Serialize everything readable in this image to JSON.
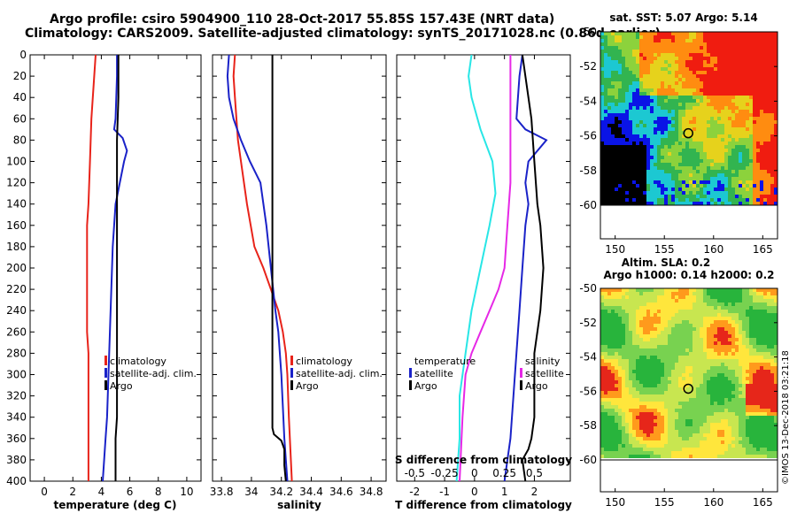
{
  "title_line1": "Argo profile: csiro 5904900_110 28-Oct-2017 55.85S 157.43E (NRT data)",
  "title_line2": "Climatology: CARS2009. Satellite-adjusted climatology: synTS_20171028.nc (0.86d earlier)",
  "copyright": "©IMOS 13-Dec-2018 03:21:18",
  "colors": {
    "climatology": "#e8231a",
    "satellite": "#1a22c8",
    "argo": "#000000",
    "cyan": "#28e6e6",
    "magenta": "#e628e6"
  },
  "chart_data": [
    {
      "type": "line",
      "name": "temperature",
      "xlabel": "temperature (deg C)",
      "xlim": [
        -1,
        11
      ],
      "xticks": [
        "0",
        "2",
        "4",
        "6",
        "8",
        "10"
      ],
      "ylim": [
        0,
        400
      ],
      "yticks": [
        "0",
        "20",
        "40",
        "60",
        "80",
        "100",
        "120",
        "140",
        "160",
        "180",
        "200",
        "220",
        "240",
        "260",
        "280",
        "300",
        "320",
        "340",
        "360",
        "380",
        "400"
      ],
      "legend": [
        "climatology",
        "satellite-adj. clim.",
        "Argo"
      ],
      "series": [
        {
          "name": "climatology",
          "color": "#e8231a",
          "x": [
            3.6,
            3.5,
            3.3,
            3.2,
            3.1,
            3.0,
            3.0,
            3.0,
            3.0,
            3.0,
            3.0,
            3.1,
            3.1,
            3.1,
            3.1,
            3.1,
            3.1
          ],
          "y": [
            0,
            20,
            60,
            100,
            140,
            160,
            180,
            200,
            220,
            240,
            260,
            280,
            300,
            320,
            340,
            360,
            400
          ]
        },
        {
          "name": "satellite",
          "color": "#1a22c8",
          "x": [
            5.1,
            5.1,
            5.0,
            4.9,
            5.5,
            5.8,
            5.6,
            5.3,
            5.0,
            4.8,
            4.7,
            4.6,
            4.5,
            4.4,
            4.3,
            4.2,
            4.1
          ],
          "y": [
            0,
            20,
            60,
            70,
            78,
            90,
            100,
            120,
            140,
            180,
            220,
            260,
            300,
            340,
            360,
            380,
            400
          ]
        },
        {
          "name": "Argo",
          "color": "#000000",
          "x": [
            5.2,
            5.2,
            5.1,
            5.1,
            5.1,
            5.1,
            5.1,
            5.1,
            5.1,
            5.1,
            5.1,
            5.1,
            5.1,
            5.0,
            5.0,
            5.0
          ],
          "y": [
            0,
            40,
            80,
            100,
            140,
            180,
            200,
            220,
            260,
            280,
            300,
            320,
            340,
            360,
            380,
            400
          ]
        }
      ]
    },
    {
      "type": "line",
      "name": "salinity",
      "xlabel": "salinity",
      "xlim": [
        33.74,
        34.9
      ],
      "xticks": [
        "33.8",
        "34",
        "34.2",
        "34.4",
        "34.6",
        "34.8"
      ],
      "ylim": [
        0,
        400
      ],
      "legend": [
        "climatology",
        "satellite-adj. clim.",
        "Argo"
      ],
      "series": [
        {
          "name": "climatology",
          "color": "#e8231a",
          "x": [
            33.89,
            33.88,
            33.89,
            33.9,
            33.91,
            33.93,
            33.97,
            34.02,
            34.08,
            34.13,
            34.18,
            34.21,
            34.23,
            34.24,
            34.25,
            34.26,
            34.27
          ],
          "y": [
            0,
            20,
            40,
            60,
            80,
            100,
            140,
            180,
            200,
            220,
            240,
            260,
            280,
            300,
            340,
            370,
            400
          ]
        },
        {
          "name": "satellite",
          "color": "#1a22c8",
          "x": [
            33.85,
            33.84,
            33.85,
            33.88,
            33.93,
            33.99,
            34.06,
            34.1,
            34.13,
            34.16,
            34.18,
            34.19,
            34.2,
            34.21,
            34.22,
            34.23,
            34.24
          ],
          "y": [
            0,
            20,
            40,
            60,
            80,
            100,
            120,
            160,
            200,
            240,
            260,
            280,
            300,
            330,
            360,
            380,
            400
          ]
        },
        {
          "name": "Argo",
          "color": "#000000",
          "x": [
            34.14,
            34.14,
            34.14,
            34.14,
            34.14,
            34.14,
            34.14,
            34.14,
            34.15,
            34.2,
            34.22,
            34.22,
            34.23
          ],
          "y": [
            0,
            40,
            100,
            160,
            220,
            280,
            320,
            350,
            356,
            362,
            370,
            385,
            400
          ]
        }
      ]
    },
    {
      "type": "line",
      "name": "differences",
      "xlabel": "T difference from climatology",
      "xlabel2": "S difference from climatology",
      "xlim": [
        -2.6,
        3.2
      ],
      "xticks": [
        "-2",
        "-1",
        "0",
        "1",
        "2"
      ],
      "xticks2": [
        "-0.5",
        "-0.25",
        "0",
        "0.25",
        "0.5"
      ],
      "ylim": [
        0,
        400
      ],
      "legend_left": [
        "temperature",
        "satellite",
        "Argo"
      ],
      "legend_right": [
        "salinity",
        "satellite",
        "Argo"
      ],
      "series": [
        {
          "name": "temperature satellite",
          "color": "#28e6e6",
          "x": [
            -0.1,
            -0.2,
            -0.1,
            0.2,
            0.6,
            0.7,
            0.5,
            0.2,
            -0.1,
            -0.3,
            -0.5,
            -0.5,
            -0.6
          ],
          "y": [
            0,
            20,
            40,
            70,
            100,
            130,
            160,
            200,
            240,
            280,
            320,
            360,
            400
          ]
        },
        {
          "name": "salinity satellite",
          "color": "#e628e6",
          "x": [
            1.2,
            1.2,
            1.2,
            1.2,
            1.1,
            1.0,
            0.8,
            0.5,
            0.2,
            -0.1,
            -0.3,
            -0.4,
            -0.5
          ],
          "y": [
            0,
            40,
            80,
            120,
            160,
            200,
            220,
            240,
            260,
            280,
            300,
            340,
            400
          ]
        },
        {
          "name": "temperature Argo",
          "color": "#1a22c8",
          "x": [
            1.6,
            1.5,
            1.4,
            1.7,
            2.4,
            1.8,
            1.7,
            1.8,
            1.7,
            1.6,
            1.5,
            1.4,
            1.3,
            1.2,
            1.1,
            1.0
          ],
          "y": [
            0,
            20,
            60,
            70,
            80,
            100,
            120,
            140,
            160,
            200,
            240,
            280,
            320,
            360,
            380,
            400
          ]
        },
        {
          "name": "salinity Argo",
          "color": "#000000",
          "x": [
            1.6,
            1.7,
            1.8,
            1.9,
            2.0,
            2.1,
            2.2,
            2.3,
            2.2,
            2.1,
            2.0,
            2.0,
            2.0,
            1.9,
            1.8,
            1.6,
            1.7
          ],
          "y": [
            0,
            20,
            40,
            60,
            100,
            140,
            160,
            200,
            240,
            260,
            280,
            320,
            340,
            360,
            370,
            380,
            400
          ]
        }
      ]
    },
    {
      "type": "heatmap",
      "name": "sst map",
      "title": "sat. SST: 5.07 Argo: 5.14",
      "xticks": [
        "150",
        "155",
        "160",
        "165"
      ],
      "yticks": [
        "-50",
        "-52",
        "-54",
        "-56",
        "-58",
        "-60"
      ],
      "marker_lon": 157.43,
      "marker_lat": -55.85
    },
    {
      "type": "heatmap",
      "name": "sla map",
      "title_line1": "Altim. SLA: 0.2",
      "title_line2": "Argo h1000: 0.14 h2000: 0.2",
      "xticks": [
        "150",
        "155",
        "160",
        "165"
      ],
      "yticks": [
        "-50",
        "-52",
        "-54",
        "-56",
        "-58",
        "-60"
      ],
      "marker_lon": 157.43,
      "marker_lat": -55.85
    }
  ]
}
